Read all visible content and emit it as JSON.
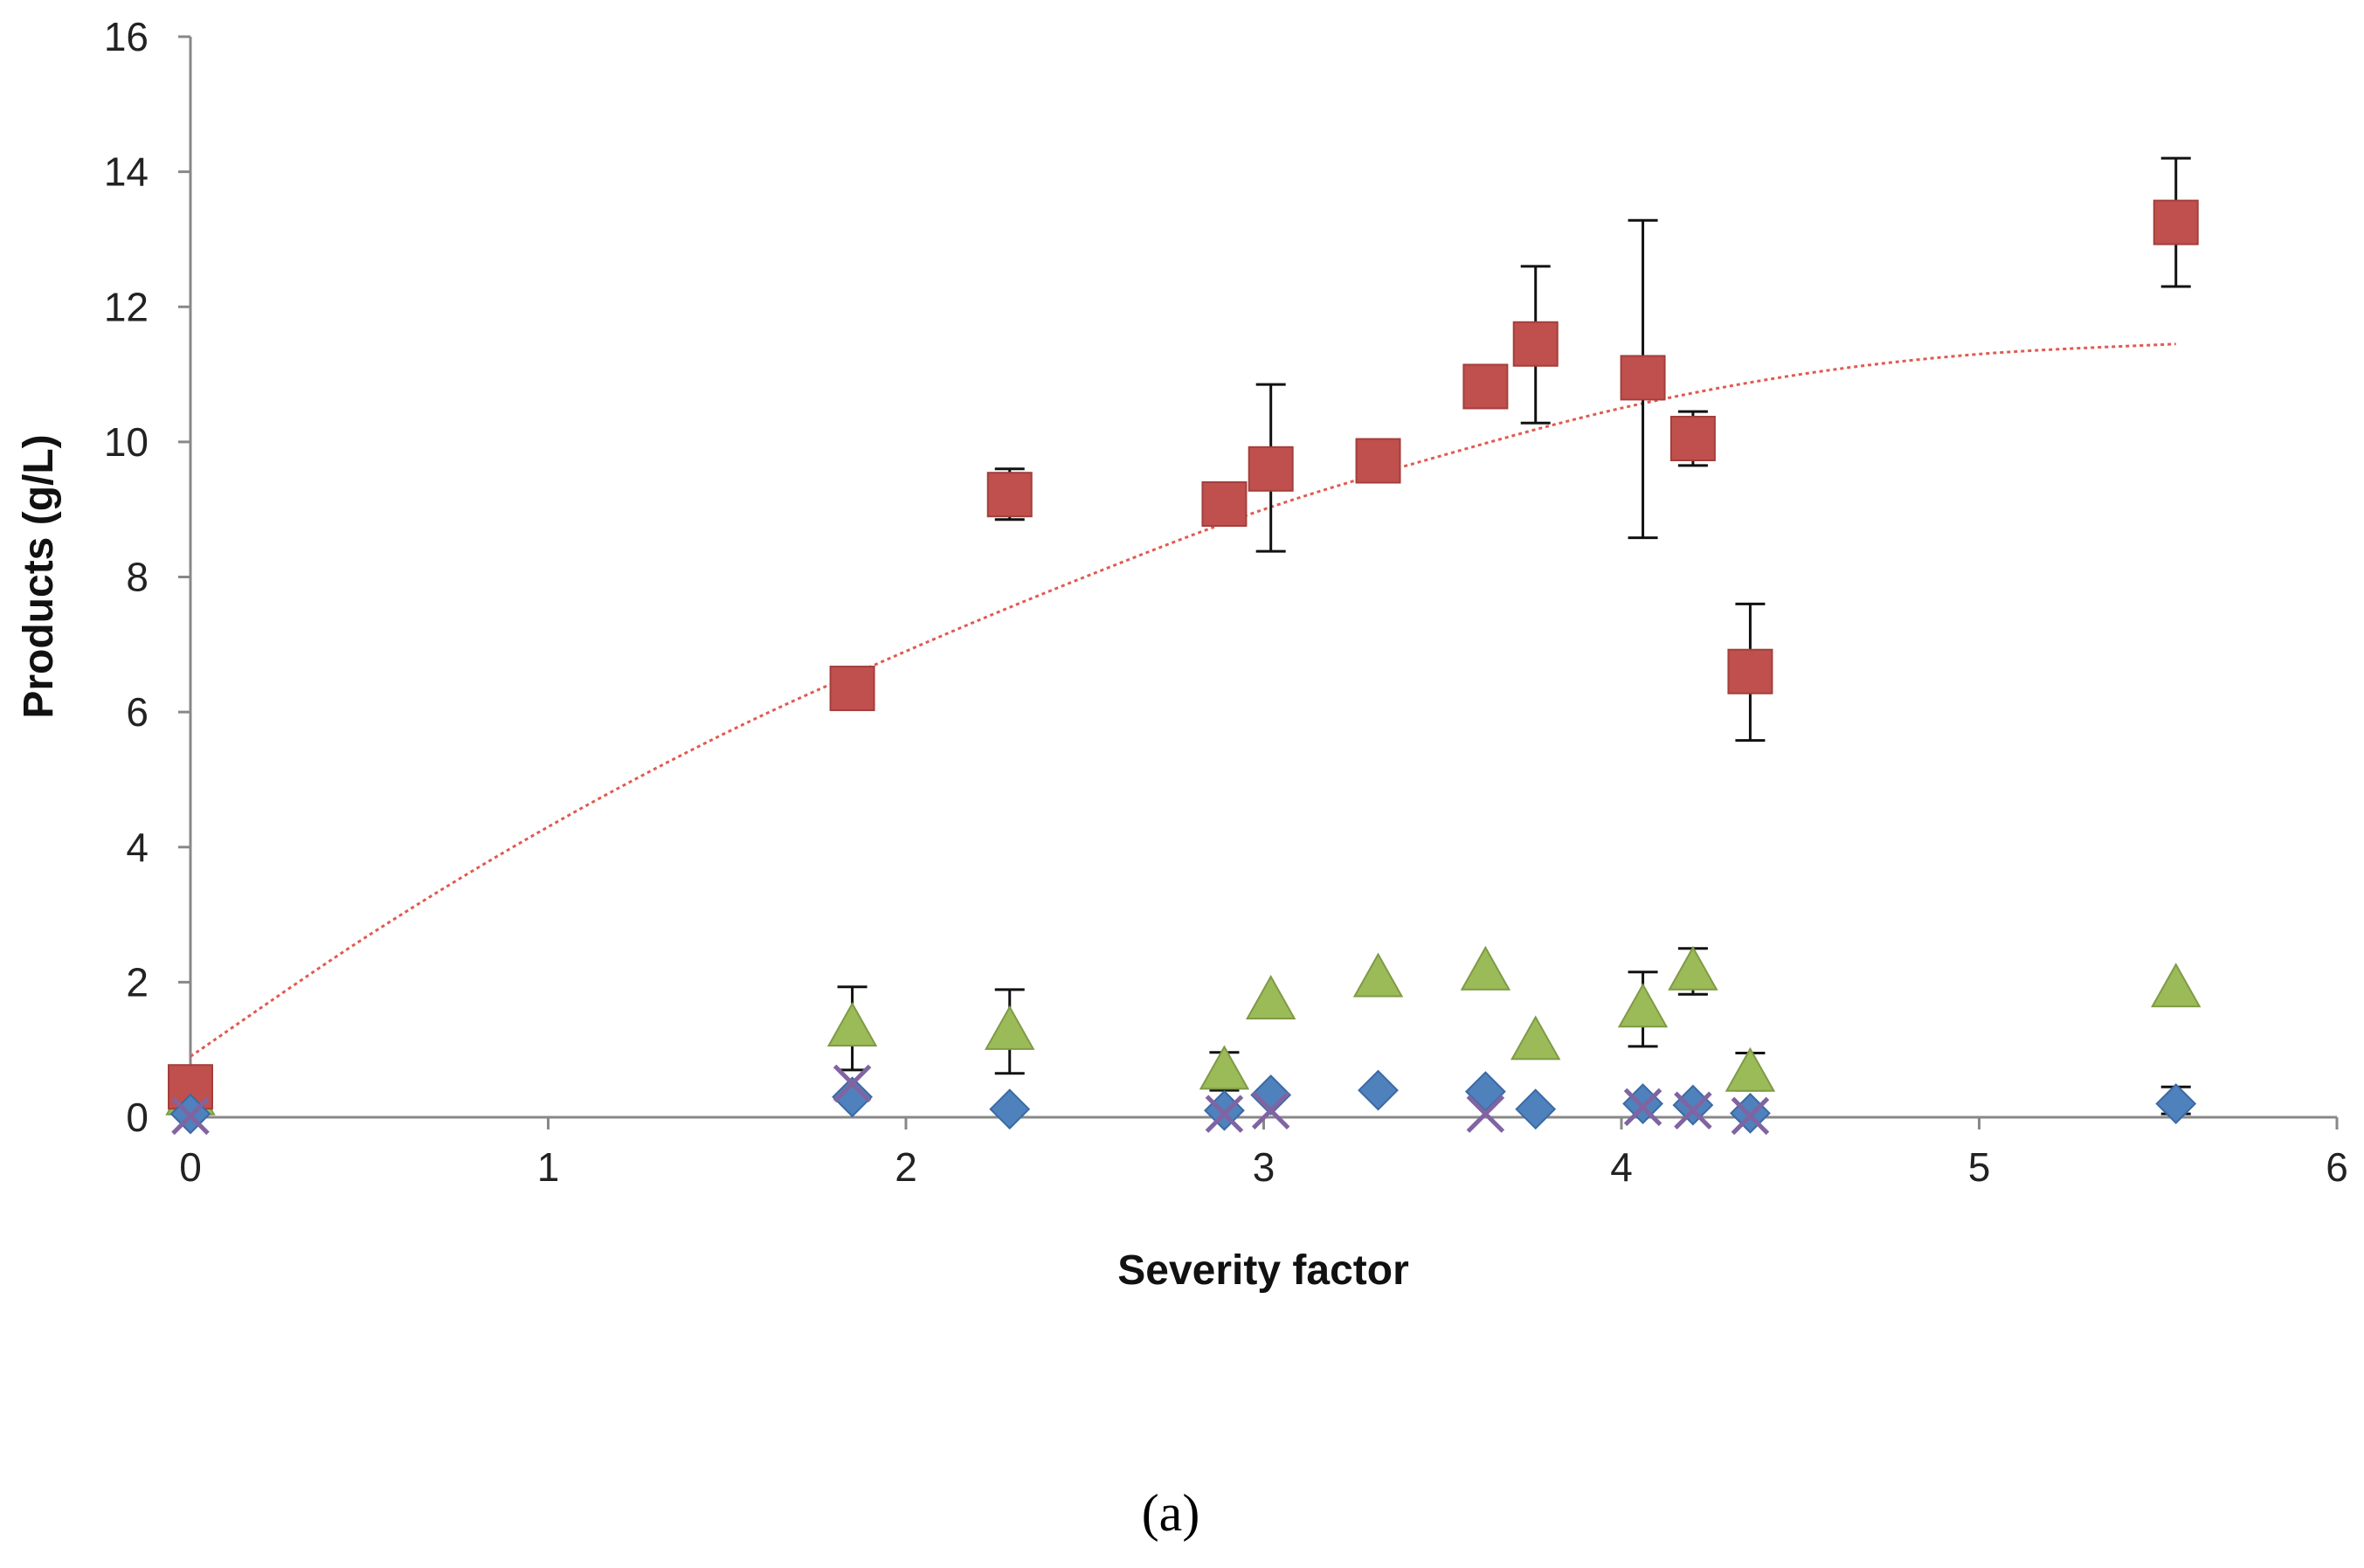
{
  "chart_data": {
    "type": "scatter",
    "title": "",
    "xlabel": "Severity factor",
    "ylabel": "Products (g/L)",
    "xlim": [
      0,
      6
    ],
    "ylim": [
      0,
      16
    ],
    "x_ticks": [
      0,
      1,
      2,
      3,
      4,
      5,
      6
    ],
    "y_ticks": [
      0,
      2,
      4,
      6,
      8,
      10,
      12,
      14,
      16
    ],
    "grid": false,
    "legend": "none",
    "caption": "(a)",
    "series": [
      {
        "name": "square",
        "marker": "square",
        "color": "#c0504d",
        "border": "#a33f3c",
        "points": [
          {
            "x": 0.0,
            "y": 0.45
          },
          {
            "x": 1.85,
            "y": 6.35
          },
          {
            "x": 2.29,
            "y": 9.22,
            "err_lo": 8.85,
            "err_hi": 9.6
          },
          {
            "x": 2.89,
            "y": 9.08
          },
          {
            "x": 3.02,
            "y": 9.6,
            "err_lo": 8.38,
            "err_hi": 10.85
          },
          {
            "x": 3.32,
            "y": 9.72
          },
          {
            "x": 3.62,
            "y": 10.82
          },
          {
            "x": 3.76,
            "y": 11.45,
            "err_lo": 10.28,
            "err_hi": 12.6
          },
          {
            "x": 4.06,
            "y": 10.95,
            "err_lo": 8.58,
            "err_hi": 13.28
          },
          {
            "x": 4.2,
            "y": 10.05,
            "err_lo": 9.65,
            "err_hi": 10.45
          },
          {
            "x": 4.36,
            "y": 6.6,
            "err_lo": 5.58,
            "err_hi": 7.6
          },
          {
            "x": 5.55,
            "y": 13.25,
            "err_lo": 12.3,
            "err_hi": 14.2
          }
        ]
      },
      {
        "name": "triangle",
        "marker": "triangle",
        "color": "#9bbb59",
        "border": "#7f9a45",
        "points": [
          {
            "x": 0.0,
            "y": 0.3
          },
          {
            "x": 1.85,
            "y": 1.32,
            "err_lo": 0.7,
            "err_hi": 1.93
          },
          {
            "x": 2.29,
            "y": 1.27,
            "err_lo": 0.65,
            "err_hi": 1.89
          },
          {
            "x": 2.89,
            "y": 0.68,
            "err_lo": 0.4,
            "err_hi": 0.96
          },
          {
            "x": 3.02,
            "y": 1.72
          },
          {
            "x": 3.32,
            "y": 2.05
          },
          {
            "x": 3.62,
            "y": 2.15
          },
          {
            "x": 3.76,
            "y": 1.12
          },
          {
            "x": 4.06,
            "y": 1.6,
            "err_lo": 1.05,
            "err_hi": 2.15
          },
          {
            "x": 4.2,
            "y": 2.15,
            "err_lo": 1.82,
            "err_hi": 2.5
          },
          {
            "x": 4.36,
            "y": 0.65,
            "err_lo": 0.4,
            "err_hi": 0.95
          },
          {
            "x": 5.55,
            "y": 1.9
          }
        ]
      },
      {
        "name": "diamond",
        "marker": "diamond",
        "color": "#4f81bd",
        "border": "#3a6aa3",
        "points": [
          {
            "x": 0.0,
            "y": 0.05
          },
          {
            "x": 1.85,
            "y": 0.3
          },
          {
            "x": 2.29,
            "y": 0.12
          },
          {
            "x": 2.89,
            "y": 0.1
          },
          {
            "x": 3.02,
            "y": 0.33
          },
          {
            "x": 3.32,
            "y": 0.4
          },
          {
            "x": 3.62,
            "y": 0.38
          },
          {
            "x": 3.76,
            "y": 0.12
          },
          {
            "x": 4.06,
            "y": 0.2
          },
          {
            "x": 4.2,
            "y": 0.18
          },
          {
            "x": 4.36,
            "y": 0.06
          },
          {
            "x": 5.55,
            "y": 0.2,
            "err_lo": 0.05,
            "err_hi": 0.45
          }
        ]
      },
      {
        "name": "cross",
        "marker": "x",
        "color": "#8064a2",
        "points": [
          {
            "x": 0.0,
            "y": 0.02
          },
          {
            "x": 1.85,
            "y": 0.5
          },
          {
            "x": 2.89,
            "y": 0.05
          },
          {
            "x": 3.02,
            "y": 0.1
          },
          {
            "x": 3.62,
            "y": 0.05
          },
          {
            "x": 4.06,
            "y": 0.15
          },
          {
            "x": 4.2,
            "y": 0.1
          },
          {
            "x": 4.36,
            "y": 0.02
          }
        ]
      }
    ],
    "trendline": {
      "series": "square",
      "style": "dotted",
      "color": "#e05a50",
      "x": [
        0,
        0.5,
        1,
        1.5,
        2,
        2.5,
        3,
        3.5,
        4,
        4.5,
        5,
        5.55
      ],
      "y": [
        0.9,
        2.7,
        4.3,
        5.7,
        6.9,
        8.0,
        9.0,
        9.8,
        10.5,
        11.0,
        11.3,
        11.45
      ]
    }
  }
}
